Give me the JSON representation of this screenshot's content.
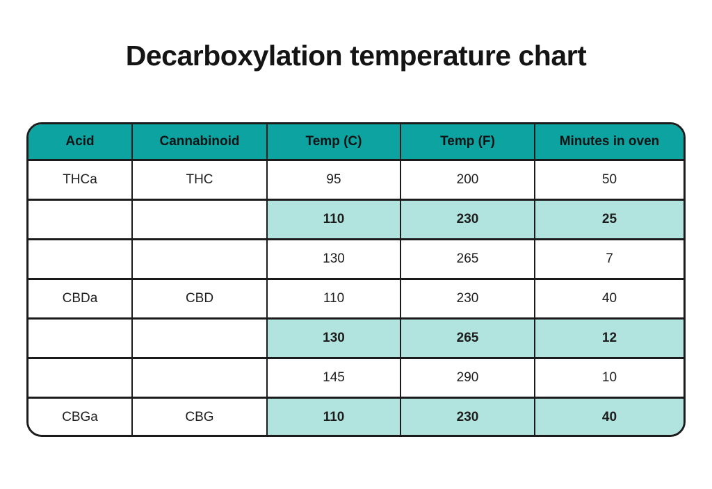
{
  "title": "Decarboxylation temperature chart",
  "colors": {
    "header_bg": "#0ca3a1",
    "highlight_bg": "#b2e4df",
    "border": "#1b1b1b",
    "text": "#1d1d1d",
    "page_bg": "#ffffff"
  },
  "chart_data": {
    "type": "table",
    "title": "Decarboxylation temperature chart",
    "columns": [
      "Acid",
      "Cannabinoid",
      "Temp (C)",
      "Temp (F)",
      "Minutes in oven"
    ],
    "rows": [
      {
        "acid": "THCa",
        "cannabinoid": "THC",
        "temp_c": "95",
        "temp_f": "200",
        "minutes": "50",
        "highlighted": false
      },
      {
        "acid": "",
        "cannabinoid": "",
        "temp_c": "110",
        "temp_f": "230",
        "minutes": "25",
        "highlighted": true
      },
      {
        "acid": "",
        "cannabinoid": "",
        "temp_c": "130",
        "temp_f": "265",
        "minutes": "7",
        "highlighted": false
      },
      {
        "acid": "CBDa",
        "cannabinoid": "CBD",
        "temp_c": "110",
        "temp_f": "230",
        "minutes": "40",
        "highlighted": false
      },
      {
        "acid": "",
        "cannabinoid": "",
        "temp_c": "130",
        "temp_f": "265",
        "minutes": "12",
        "highlighted": true
      },
      {
        "acid": "",
        "cannabinoid": "",
        "temp_c": "145",
        "temp_f": "290",
        "minutes": "10",
        "highlighted": false
      },
      {
        "acid": "CBGa",
        "cannabinoid": "CBG",
        "temp_c": "110",
        "temp_f": "230",
        "minutes": "40",
        "highlighted": true
      }
    ],
    "layout": {
      "highlighted_columns_when_row_highlighted": [
        "Temp (C)",
        "Temp (F)",
        "Minutes in oven"
      ],
      "grid": true,
      "legend": false
    }
  }
}
